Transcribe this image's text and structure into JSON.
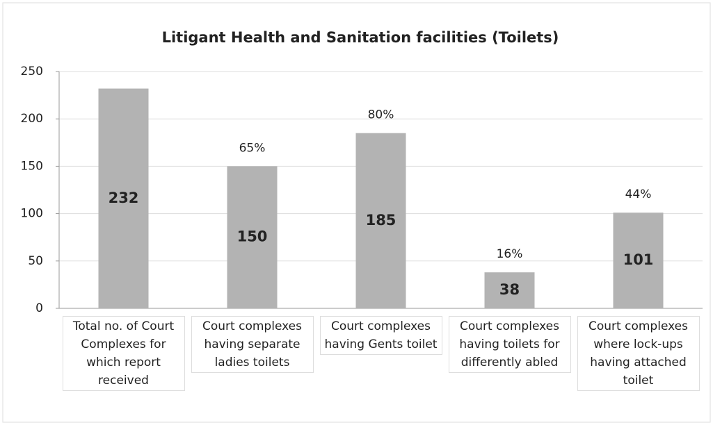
{
  "chart_data": {
    "type": "bar",
    "title": "Litigant Health and Sanitation facilities (Toilets)",
    "categories": [
      "Total no. of Court Complexes for which report received",
      "Court complexes having separate ladies toilets",
      "Court complexes having Gents toilet",
      "Court complexes having toilets for differently abled",
      "Court complexes where lock-ups having attached toilet"
    ],
    "values": [
      232,
      150,
      185,
      38,
      101
    ],
    "percent_labels": [
      null,
      "65%",
      "80%",
      "16%",
      "44%"
    ],
    "color": "#b3b3b3",
    "ylim": [
      0,
      250
    ],
    "yticks": [
      0,
      50,
      100,
      150,
      200,
      250
    ],
    "grid": true
  }
}
